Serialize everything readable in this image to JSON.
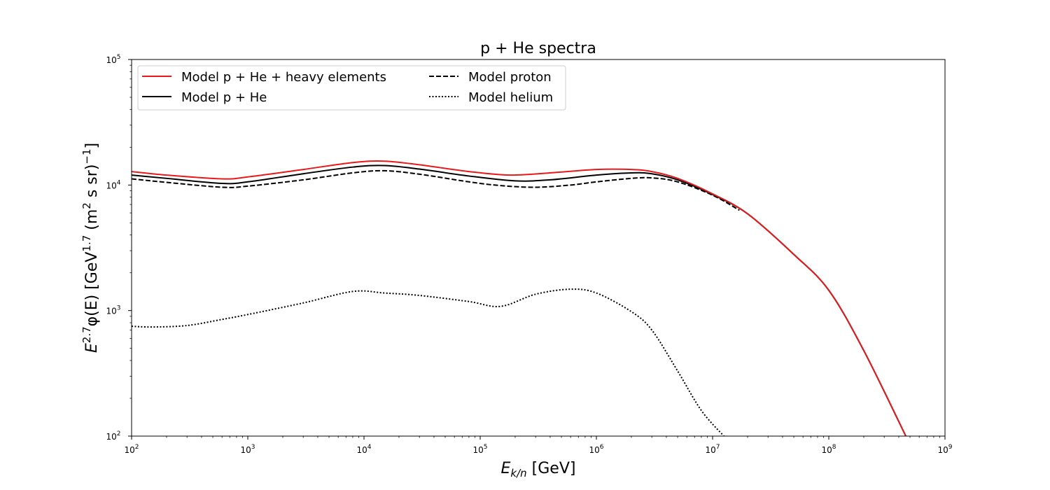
{
  "chart_data": {
    "type": "line",
    "title": "p + He spectra",
    "xlabel": {
      "base": "E",
      "sub": "k/n",
      "unit": " [GeV]"
    },
    "ylabel": {
      "prefix": "E",
      "exp": "2.7",
      "mid": "φ(E) [GeV",
      "exp2": "1.7",
      "tail": " (m",
      "exp3": "2",
      "tail2": " s sr)",
      "exp4": "−1",
      "end": "]"
    },
    "xscale": "log",
    "yscale": "log",
    "xlim": [
      100,
      1000000000
    ],
    "ylim": [
      100,
      100000
    ],
    "grid": false,
    "legend_position": "top-left",
    "x_ticks": [
      {
        "base": "10",
        "exp": "2",
        "value": 100
      },
      {
        "base": "10",
        "exp": "3",
        "value": 1000
      },
      {
        "base": "10",
        "exp": "4",
        "value": 10000
      },
      {
        "base": "10",
        "exp": "5",
        "value": 100000
      },
      {
        "base": "10",
        "exp": "6",
        "value": 1000000
      },
      {
        "base": "10",
        "exp": "7",
        "value": 10000000
      },
      {
        "base": "10",
        "exp": "8",
        "value": 100000000
      },
      {
        "base": "10",
        "exp": "9",
        "value": 1000000000
      }
    ],
    "y_ticks": [
      {
        "base": "10",
        "exp": "2",
        "value": 100
      },
      {
        "base": "10",
        "exp": "3",
        "value": 1000
      },
      {
        "base": "10",
        "exp": "4",
        "value": 10000
      },
      {
        "base": "10",
        "exp": "5",
        "value": 100000
      }
    ],
    "series": [
      {
        "name": "Model p + He + heavy elements",
        "color": "#e41a1c",
        "dash": "solid",
        "x": [
          100,
          200,
          600,
          1000,
          3000,
          8000,
          15000,
          30000,
          80000,
          180000,
          400000,
          1000000,
          2000000,
          3000000,
          5000000,
          10000000,
          20000000,
          50000000,
          100000000,
          200000000,
          460000000
        ],
        "y": [
          12800,
          12000,
          11200,
          11600,
          13300,
          15100,
          15500,
          14500,
          12800,
          12000,
          12500,
          13300,
          13300,
          12800,
          11300,
          8500,
          5900,
          2800,
          1450,
          480,
          100
        ]
      },
      {
        "name": "Model p + He",
        "color": "#000000",
        "dash": "solid",
        "x": [
          100,
          200,
          600,
          1000,
          3000,
          8000,
          15000,
          30000,
          80000,
          200000,
          400000,
          1000000,
          2000000,
          3000000,
          5000000,
          10000000,
          20000000,
          50000000,
          100000000,
          200000000,
          460000000
        ],
        "y": [
          12000,
          11300,
          10300,
          10600,
          12300,
          13900,
          14300,
          13400,
          11800,
          10800,
          11000,
          12000,
          12500,
          12300,
          11000,
          8400,
          5900,
          2800,
          1450,
          480,
          100
        ]
      },
      {
        "name": "Model proton",
        "color": "#000000",
        "dash": "dashed",
        "x": [
          100,
          200,
          600,
          1000,
          3000,
          8000,
          15000,
          30000,
          80000,
          150000,
          300000,
          600000,
          1000000,
          2000000,
          3000000,
          5000000,
          10000000,
          17000000
        ],
        "y": [
          11200,
          10500,
          9600,
          9800,
          11000,
          12500,
          13000,
          12200,
          10600,
          9900,
          9600,
          10000,
          10600,
          11300,
          11400,
          10600,
          8300,
          6300
        ]
      },
      {
        "name": "Model helium",
        "color": "#000000",
        "dash": "dotted",
        "x": [
          100,
          150,
          300,
          600,
          1000,
          3000,
          8000,
          15000,
          30000,
          80000,
          150000,
          300000,
          600000,
          1000000,
          2000000,
          3000000,
          5000000,
          8000000,
          12500000
        ],
        "y": [
          750,
          740,
          760,
          850,
          930,
          1150,
          1420,
          1380,
          1320,
          1180,
          1080,
          1350,
          1480,
          1380,
          980,
          700,
          330,
          160,
          100
        ]
      }
    ]
  }
}
